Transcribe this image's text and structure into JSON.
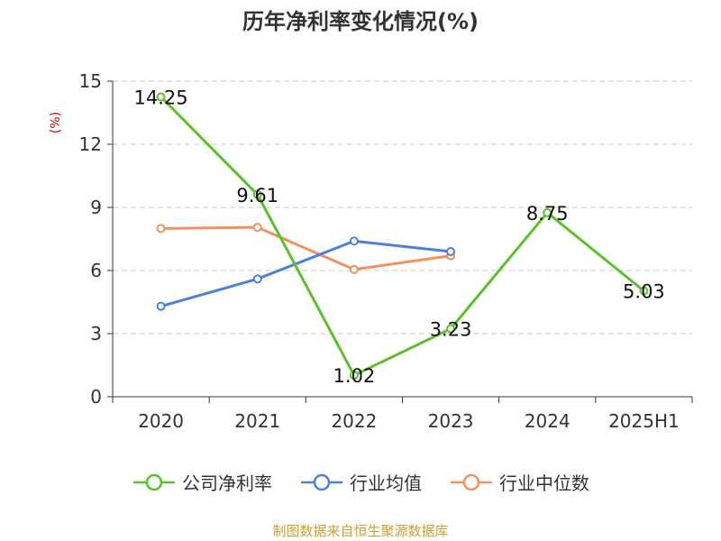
{
  "chart_data": {
    "type": "line",
    "title": "历年净利率变化情况(%)",
    "ylabel": "(%)",
    "categories": [
      "2020",
      "2021",
      "2022",
      "2023",
      "2024",
      "2025H1"
    ],
    "yticks": [
      "0",
      "3",
      "6",
      "9",
      "12",
      "15"
    ],
    "ylim": [
      0,
      15
    ],
    "grid": true,
    "legend_position": "bottom",
    "series": [
      {
        "name": "公司净利率",
        "color": "#5cc02c",
        "values": [
          14.25,
          9.61,
          1.02,
          3.23,
          8.75,
          5.03
        ],
        "labels": [
          "14.25",
          "9.61",
          "1.02",
          "3.23",
          "8.75",
          "5.03"
        ]
      },
      {
        "name": "行业均值",
        "color": "#4f7fd8",
        "values": [
          4.3,
          5.6,
          7.4,
          6.9,
          null,
          null
        ]
      },
      {
        "name": "行业中位数",
        "color": "#f4905c",
        "values": [
          8.0,
          8.05,
          6.05,
          6.7,
          null,
          null
        ]
      }
    ]
  },
  "source": "制图数据来自恒生聚源数据库"
}
